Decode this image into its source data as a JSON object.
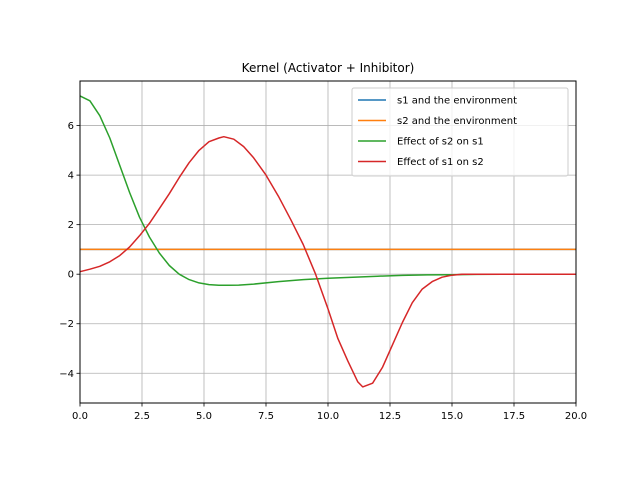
{
  "chart_data": {
    "type": "line",
    "title": "Kernel (Activator + Inhibitor)",
    "xlabel": "",
    "ylabel": "",
    "xlim": [
      0,
      20
    ],
    "ylim": [
      -5.2,
      7.8
    ],
    "xticks": [
      0,
      2.5,
      5,
      7.5,
      10,
      12.5,
      15,
      17.5,
      20
    ],
    "xtick_labels": [
      "0.0",
      "2.5",
      "5.0",
      "7.5",
      "10.0",
      "12.5",
      "15.0",
      "17.5",
      "20.0"
    ],
    "yticks": [
      -4,
      -2,
      0,
      2,
      4,
      6
    ],
    "ytick_labels": [
      "−4",
      "−2",
      "0",
      "2",
      "4",
      "6"
    ],
    "grid": true,
    "legend_position": "top-right",
    "series": [
      {
        "name": "s1 and the environment",
        "color": "#1f77b4",
        "x": [
          0,
          20
        ],
        "y": [
          1,
          1
        ]
      },
      {
        "name": "s2 and the environment",
        "color": "#ff7f0e",
        "x": [
          0,
          20
        ],
        "y": [
          1,
          1
        ]
      },
      {
        "name": "Effect of s2 on s1",
        "color": "#2ca02c",
        "x": [
          0,
          0.4,
          0.8,
          1.2,
          1.6,
          2.0,
          2.4,
          2.8,
          3.2,
          3.6,
          4.0,
          4.4,
          4.8,
          5.2,
          5.6,
          6.0,
          6.4,
          7.0,
          8.0,
          9.0,
          10.0,
          11.0,
          12.0,
          13.0,
          14.0,
          15.0,
          16.0,
          17.0,
          18.0,
          19.0,
          20.0
        ],
        "y": [
          7.2,
          7.0,
          6.4,
          5.5,
          4.4,
          3.3,
          2.3,
          1.5,
          0.85,
          0.35,
          0.0,
          -0.22,
          -0.35,
          -0.42,
          -0.45,
          -0.45,
          -0.44,
          -0.4,
          -0.3,
          -0.22,
          -0.16,
          -0.12,
          -0.08,
          -0.05,
          -0.03,
          -0.02,
          -0.01,
          0.0,
          0.0,
          0.0,
          0.0
        ]
      },
      {
        "name": "Effect of s1 on s2",
        "color": "#d62728",
        "x": [
          0,
          0.4,
          0.8,
          1.2,
          1.6,
          2.0,
          2.4,
          2.8,
          3.2,
          3.6,
          4.0,
          4.4,
          4.8,
          5.2,
          5.6,
          5.8,
          6.2,
          6.6,
          7.0,
          7.5,
          8.0,
          8.5,
          9.0,
          9.5,
          10.0,
          10.4,
          10.8,
          11.2,
          11.4,
          11.8,
          12.2,
          12.6,
          13.0,
          13.4,
          13.8,
          14.2,
          14.6,
          15.0,
          15.4,
          16.0,
          17.0,
          18.0,
          19.0,
          20.0
        ],
        "y": [
          0.1,
          0.2,
          0.32,
          0.5,
          0.75,
          1.1,
          1.55,
          2.05,
          2.65,
          3.25,
          3.9,
          4.5,
          5.0,
          5.35,
          5.5,
          5.55,
          5.45,
          5.15,
          4.7,
          4.0,
          3.15,
          2.2,
          1.2,
          0.0,
          -1.4,
          -2.6,
          -3.5,
          -4.35,
          -4.55,
          -4.4,
          -3.75,
          -2.85,
          -1.95,
          -1.15,
          -0.6,
          -0.3,
          -0.12,
          -0.04,
          0.0,
          0.0,
          0.0,
          0.0,
          0.0,
          0.0
        ]
      }
    ]
  }
}
